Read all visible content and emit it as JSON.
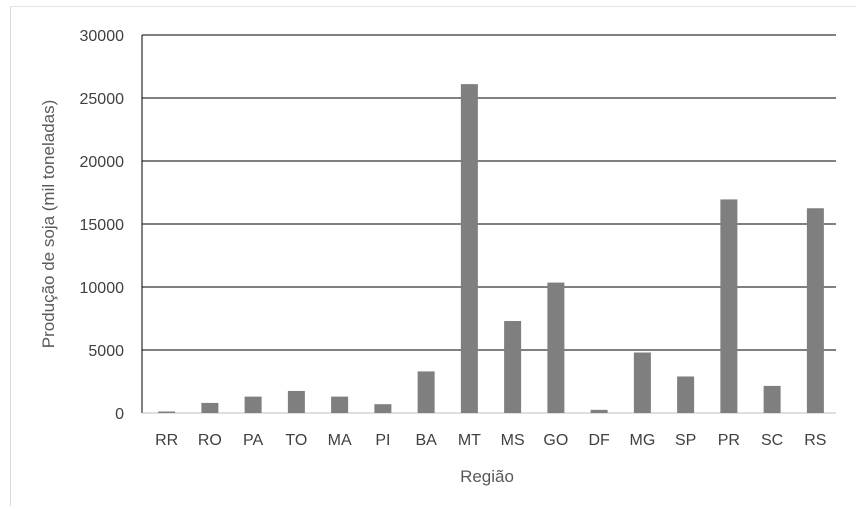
{
  "chart_data": {
    "type": "bar",
    "categories": [
      "RR",
      "RO",
      "PA",
      "TO",
      "MA",
      "PI",
      "BA",
      "MT",
      "MS",
      "GO",
      "DF",
      "MG",
      "SP",
      "PR",
      "SC",
      "RS"
    ],
    "values": [
      120,
      800,
      1300,
      1750,
      1300,
      700,
      3300,
      26100,
      7300,
      10350,
      250,
      4800,
      2900,
      16950,
      2150,
      16250
    ],
    "title": "",
    "xlabel": "Região",
    "ylabel": "Produção de soja (mil toneladas)",
    "ylim": [
      0,
      30000
    ],
    "yticks": [
      0,
      5000,
      10000,
      15000,
      20000,
      25000,
      30000
    ],
    "grid": true,
    "bar_color": "#7f7f7f",
    "grid_color": "#000000"
  }
}
